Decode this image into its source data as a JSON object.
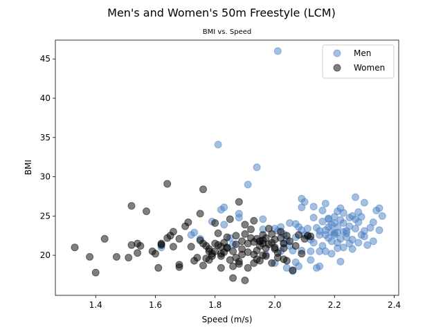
{
  "chart_data": {
    "type": "scatter",
    "title": "Men's and Women's 50m Freestyle (LCM)",
    "subtitle": "BMI vs. Speed",
    "xlabel": "Speed (m/s)",
    "ylabel": "BMI",
    "xlim": [
      1.265,
      2.415
    ],
    "ylim": [
      14.9,
      47.4
    ],
    "xticks": [
      "1.4",
      "1.6",
      "1.8",
      "2.0",
      "2.2",
      "2.4"
    ],
    "yticks": [
      "20",
      "25",
      "30",
      "35",
      "40",
      "45"
    ],
    "grid": false,
    "legend_position": "top-right",
    "series": [
      {
        "name": "Men",
        "color": "#4a7fc1",
        "alpha": 0.5,
        "points": [
          [
            2.01,
            46.0
          ],
          [
            1.81,
            34.1
          ],
          [
            1.94,
            31.2
          ],
          [
            1.91,
            29.0
          ],
          [
            1.82,
            25.8
          ],
          [
            1.83,
            26.1
          ],
          [
            1.88,
            25.3
          ],
          [
            1.88,
            24.8
          ],
          [
            1.79,
            24.3
          ],
          [
            1.96,
            24.6
          ],
          [
            1.96,
            23.3
          ],
          [
            1.72,
            22.6
          ],
          [
            1.73,
            22.9
          ],
          [
            1.75,
            22.1
          ],
          [
            1.62,
            21.0
          ],
          [
            1.62,
            21.4
          ],
          [
            1.83,
            23.9
          ],
          [
            1.85,
            22.2
          ],
          [
            1.86,
            21.4
          ],
          [
            2.0,
            23.4
          ],
          [
            2.01,
            23.1
          ],
          [
            2.02,
            23.6
          ],
          [
            2.03,
            22.7
          ],
          [
            2.04,
            22.0
          ],
          [
            2.05,
            21.2
          ],
          [
            2.06,
            20.6
          ],
          [
            2.06,
            18.0
          ],
          [
            2.07,
            19.1
          ],
          [
            2.08,
            18.6
          ],
          [
            2.04,
            18.4
          ],
          [
            2.09,
            20.6
          ],
          [
            2.05,
            24.1
          ],
          [
            2.07,
            24.0
          ],
          [
            2.08,
            23.6
          ],
          [
            2.09,
            23.2
          ],
          [
            2.09,
            26.1
          ],
          [
            2.09,
            27.2
          ],
          [
            2.1,
            26.8
          ],
          [
            2.11,
            22.5
          ],
          [
            2.12,
            22.0
          ],
          [
            2.12,
            20.5
          ],
          [
            2.13,
            24.8
          ],
          [
            2.13,
            26.2
          ],
          [
            2.14,
            23.5
          ],
          [
            2.14,
            18.4
          ],
          [
            2.15,
            20.5
          ],
          [
            2.15,
            23.1
          ],
          [
            2.15,
            18.6
          ],
          [
            2.16,
            24.3
          ],
          [
            2.16,
            21.2
          ],
          [
            2.17,
            23.2
          ],
          [
            2.17,
            26.6
          ],
          [
            2.17,
            22.6
          ],
          [
            2.17,
            20.5
          ],
          [
            2.18,
            24.7
          ],
          [
            2.18,
            24.6
          ],
          [
            2.18,
            23.6
          ],
          [
            2.18,
            22.2
          ],
          [
            2.19,
            21.8
          ],
          [
            2.19,
            20.2
          ],
          [
            2.19,
            23.0
          ],
          [
            2.2,
            22.6
          ],
          [
            2.2,
            24.1
          ],
          [
            2.2,
            24.9
          ],
          [
            2.2,
            22.8
          ],
          [
            2.21,
            21.6
          ],
          [
            2.21,
            20.9
          ],
          [
            2.21,
            22.9
          ],
          [
            2.21,
            23.6
          ],
          [
            2.21,
            25.6
          ],
          [
            2.22,
            24.5
          ],
          [
            2.22,
            22.1
          ],
          [
            2.22,
            26.0
          ],
          [
            2.22,
            19.2
          ],
          [
            2.23,
            23.0
          ],
          [
            2.23,
            25.4
          ],
          [
            2.23,
            24.1
          ],
          [
            2.23,
            21.0
          ],
          [
            2.24,
            22.8
          ],
          [
            2.24,
            23.1
          ],
          [
            2.25,
            24.8
          ],
          [
            2.25,
            21.5
          ],
          [
            2.25,
            23.7
          ],
          [
            2.26,
            22.0
          ],
          [
            2.26,
            25.0
          ],
          [
            2.26,
            20.8
          ],
          [
            2.27,
            27.4
          ],
          [
            2.27,
            23.4
          ],
          [
            2.28,
            21.6
          ],
          [
            2.28,
            25.5
          ],
          [
            2.28,
            24.2
          ],
          [
            2.29,
            22.6
          ],
          [
            2.29,
            24.9
          ],
          [
            2.3,
            26.7
          ],
          [
            2.3,
            23.1
          ],
          [
            2.31,
            21.3
          ],
          [
            2.32,
            23.5
          ],
          [
            2.33,
            21.8
          ],
          [
            2.33,
            24.2
          ],
          [
            2.34,
            25.7
          ],
          [
            2.35,
            26.0
          ],
          [
            2.35,
            23.2
          ],
          [
            2.36,
            25.0
          ],
          [
            1.95,
            21.8
          ],
          [
            1.97,
            20.1
          ],
          [
            2.0,
            19.0
          ],
          [
            2.02,
            20.5
          ],
          [
            2.07,
            22.3
          ],
          [
            2.1,
            22.6
          ],
          [
            2.11,
            23.4
          ],
          [
            2.13,
            21.6
          ],
          [
            2.15,
            22.6
          ],
          [
            2.19,
            23.9
          ],
          [
            2.24,
            22.3
          ],
          [
            2.27,
            24.6
          ],
          [
            2.3,
            22.4
          ],
          [
            2.12,
            19.4
          ],
          [
            2.16,
            25.7
          ],
          [
            2.03,
            21.5
          ]
        ]
      },
      {
        "name": "Women",
        "color": "#000000",
        "alpha": 0.5,
        "points": [
          [
            1.33,
            21.0
          ],
          [
            1.38,
            19.8
          ],
          [
            1.4,
            17.8
          ],
          [
            1.43,
            22.1
          ],
          [
            1.47,
            19.8
          ],
          [
            1.51,
            19.7
          ],
          [
            1.52,
            21.3
          ],
          [
            1.52,
            26.3
          ],
          [
            1.54,
            20.3
          ],
          [
            1.54,
            21.5
          ],
          [
            1.55,
            21.2
          ],
          [
            1.57,
            25.6
          ],
          [
            1.59,
            20.5
          ],
          [
            1.6,
            20.2
          ],
          [
            1.61,
            18.4
          ],
          [
            1.62,
            21.3
          ],
          [
            1.62,
            21.5
          ],
          [
            1.64,
            29.1
          ],
          [
            1.64,
            22.2
          ],
          [
            1.65,
            22.5
          ],
          [
            1.66,
            23.0
          ],
          [
            1.66,
            21.1
          ],
          [
            1.68,
            18.5
          ],
          [
            1.68,
            18.8
          ],
          [
            1.68,
            22.1
          ],
          [
            1.7,
            23.7
          ],
          [
            1.71,
            24.2
          ],
          [
            1.72,
            21.1
          ],
          [
            1.73,
            19.3
          ],
          [
            1.74,
            19.7
          ],
          [
            1.75,
            21.9
          ],
          [
            1.75,
            25.3
          ],
          [
            1.76,
            28.4
          ],
          [
            1.76,
            21.5
          ],
          [
            1.76,
            18.7
          ],
          [
            1.77,
            19.6
          ],
          [
            1.77,
            21.2
          ],
          [
            1.78,
            20.8
          ],
          [
            1.78,
            20.5
          ],
          [
            1.78,
            19.4
          ],
          [
            1.79,
            19.9
          ],
          [
            1.8,
            21.5
          ],
          [
            1.8,
            24.1
          ],
          [
            1.8,
            20.5
          ],
          [
            1.81,
            21.3
          ],
          [
            1.81,
            22.8
          ],
          [
            1.82,
            20.2
          ],
          [
            1.82,
            19.9
          ],
          [
            1.82,
            18.4
          ],
          [
            1.83,
            21.6
          ],
          [
            1.83,
            20.4
          ],
          [
            1.84,
            20.9
          ],
          [
            1.84,
            22.3
          ],
          [
            1.84,
            21.0
          ],
          [
            1.85,
            24.6
          ],
          [
            1.86,
            17.1
          ],
          [
            1.86,
            18.6
          ],
          [
            1.86,
            20.5
          ],
          [
            1.87,
            21.4
          ],
          [
            1.87,
            22.5
          ],
          [
            1.87,
            19.7
          ],
          [
            1.88,
            19.2
          ],
          [
            1.88,
            26.8
          ],
          [
            1.88,
            18.9
          ],
          [
            1.89,
            21.8
          ],
          [
            1.89,
            20.8
          ],
          [
            1.9,
            16.8
          ],
          [
            1.9,
            22.7
          ],
          [
            1.9,
            23.9
          ],
          [
            1.91,
            20.4
          ],
          [
            1.91,
            18.4
          ],
          [
            1.91,
            21.5
          ],
          [
            1.92,
            22.2
          ],
          [
            1.92,
            23.3
          ],
          [
            1.93,
            19.0
          ],
          [
            1.93,
            20.1
          ],
          [
            1.93,
            24.4
          ],
          [
            1.94,
            22.1
          ],
          [
            1.94,
            20.6
          ],
          [
            1.94,
            19.5
          ],
          [
            1.95,
            21.2
          ],
          [
            1.95,
            21.8
          ],
          [
            1.95,
            19.3
          ],
          [
            1.96,
            22.6
          ],
          [
            1.96,
            20.0
          ],
          [
            1.96,
            21.5
          ],
          [
            1.97,
            19.9
          ],
          [
            1.97,
            20.9
          ],
          [
            1.98,
            21.4
          ],
          [
            1.98,
            23.4
          ],
          [
            1.99,
            22.7
          ],
          [
            1.99,
            19.0
          ],
          [
            2.0,
            21.0
          ],
          [
            2.0,
            22.0
          ],
          [
            2.01,
            20.3
          ],
          [
            2.01,
            19.7
          ],
          [
            2.02,
            23.0
          ],
          [
            2.02,
            22.2
          ],
          [
            2.03,
            19.5
          ],
          [
            2.03,
            20.9
          ],
          [
            2.04,
            22.5
          ],
          [
            2.04,
            19.3
          ],
          [
            2.05,
            21.8
          ],
          [
            2.06,
            18.1
          ],
          [
            2.07,
            21.2
          ],
          [
            2.08,
            22.6
          ],
          [
            2.09,
            20.2
          ],
          [
            2.1,
            22.1
          ],
          [
            2.11,
            22.5
          ],
          [
            2.12,
            22.4
          ],
          [
            1.97,
            22.2
          ],
          [
            1.99,
            21.6
          ],
          [
            2.0,
            20.8
          ],
          [
            2.03,
            21.5
          ],
          [
            1.89,
            20.1
          ],
          [
            1.85,
            19.4
          ],
          [
            1.79,
            20.2
          ],
          [
            1.93,
            21.7
          ],
          [
            1.96,
            21.9
          ],
          [
            1.82,
            21.1
          ]
        ]
      }
    ]
  }
}
